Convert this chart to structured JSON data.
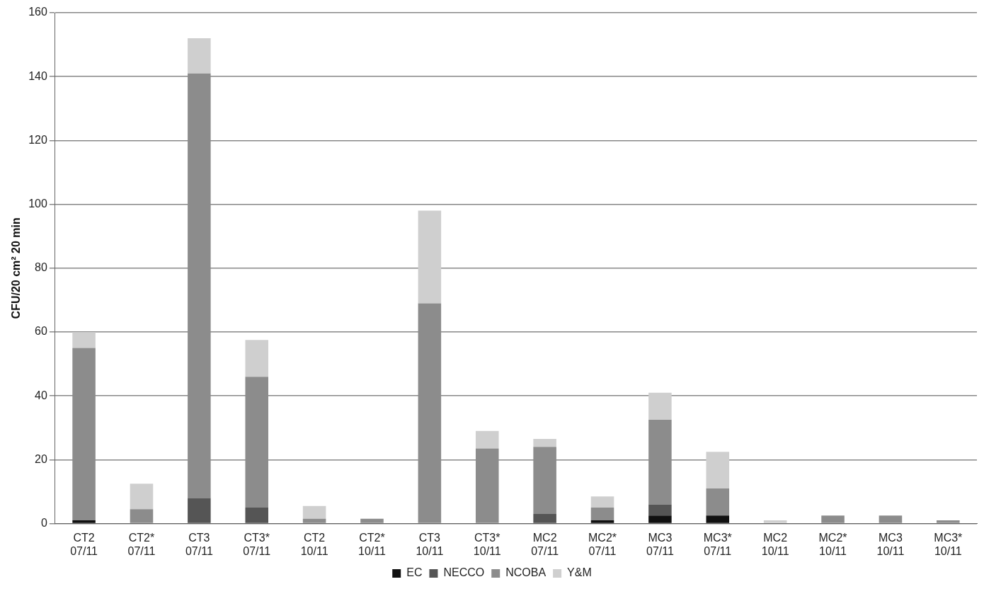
{
  "chart_data": {
    "type": "bar",
    "stacked": true,
    "ylabel": "CFU/20 cm² 20 min",
    "categories": [
      "CT2\n07/11",
      "CT2*\n07/11",
      "CT3\n07/11",
      "CT3*\n07/11",
      "CT2\n10/11",
      "CT2*\n10/11",
      "CT3\n10/11",
      "CT3*\n10/11",
      "MC2\n07/11",
      "MC2*\n07/11",
      "MC3\n07/11",
      "MC3*\n07/11",
      "MC2\n10/11",
      "MC2*\n10/11",
      "MC3\n10/11",
      "MC3*\n10/11"
    ],
    "series": [
      {
        "name": "EC",
        "color": "#111111",
        "values": [
          1,
          0,
          0,
          0,
          0,
          0,
          0,
          0,
          0,
          1,
          2.5,
          2.5,
          0,
          0,
          0,
          0
        ]
      },
      {
        "name": "NECCO",
        "color": "#555555",
        "values": [
          0,
          0,
          8,
          5,
          0,
          0,
          0,
          0,
          3,
          0,
          3.5,
          0,
          0,
          0,
          0,
          0
        ]
      },
      {
        "name": "NCOBA",
        "color": "#8c8c8c",
        "values": [
          54,
          4.5,
          133,
          41,
          1.5,
          1.5,
          69,
          23.5,
          21,
          4,
          26.5,
          8.5,
          0,
          2.5,
          2.5,
          1
        ]
      },
      {
        "name": "Y&M",
        "color": "#cfcfcf",
        "values": [
          5,
          8,
          11,
          11.5,
          4,
          0,
          29,
          5.5,
          2.5,
          3.5,
          8.5,
          11.5,
          1,
          0,
          0,
          0
        ]
      }
    ],
    "ylim": [
      0,
      160
    ],
    "yticks": [
      0,
      20,
      40,
      60,
      80,
      100,
      120,
      140,
      160
    ],
    "grid": "y",
    "legend": "bottom"
  }
}
